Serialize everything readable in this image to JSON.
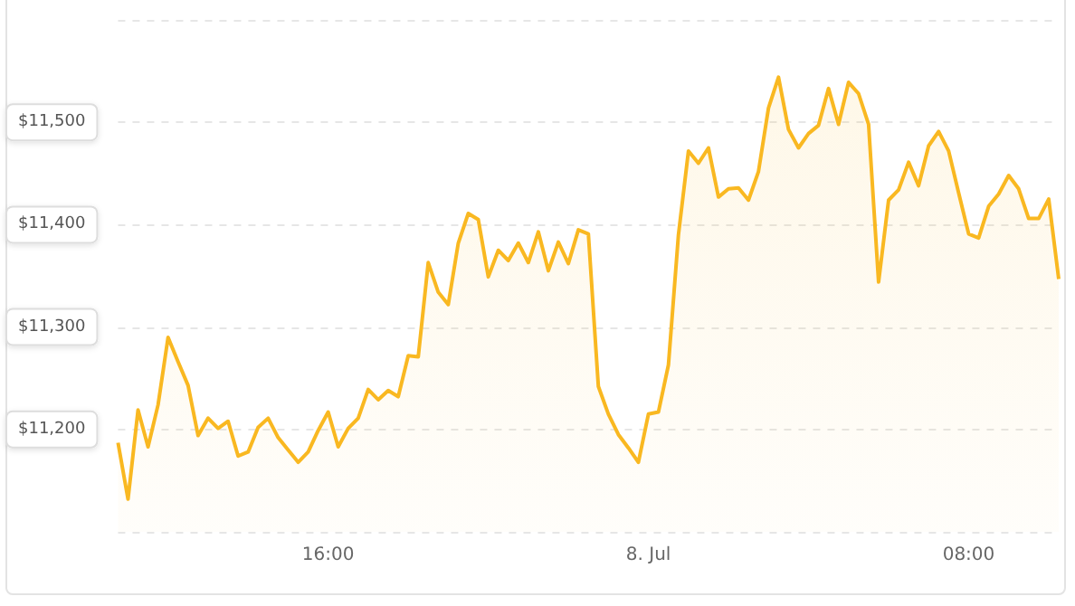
{
  "chart_data": {
    "type": "area",
    "x": [
      "--07-07T10:45",
      "--07-07T11:00",
      "--07-07T11:15",
      "--07-07T11:30",
      "--07-07T11:45",
      "--07-07T12:00",
      "--07-07T12:15",
      "--07-07T12:30",
      "--07-07T12:45",
      "--07-07T13:00",
      "--07-07T13:15",
      "--07-07T13:30",
      "--07-07T13:45",
      "--07-07T14:00",
      "--07-07T14:15",
      "--07-07T14:30",
      "--07-07T14:45",
      "--07-07T15:00",
      "--07-07T15:15",
      "--07-07T15:30",
      "--07-07T15:45",
      "--07-07T16:00",
      "--07-07T16:15",
      "--07-07T16:30",
      "--07-07T16:45",
      "--07-07T17:00",
      "--07-07T17:15",
      "--07-07T17:30",
      "--07-07T17:45",
      "--07-07T18:00",
      "--07-07T18:15",
      "--07-07T18:30",
      "--07-07T18:45",
      "--07-07T19:00",
      "--07-07T19:15",
      "--07-07T19:30",
      "--07-07T19:45",
      "--07-07T20:00",
      "--07-07T20:15",
      "--07-07T20:30",
      "--07-07T20:45",
      "--07-07T21:00",
      "--07-07T21:15",
      "--07-07T21:30",
      "--07-07T21:45",
      "--07-07T22:00",
      "--07-07T22:15",
      "--07-07T22:30",
      "--07-07T22:45",
      "--07-07T23:00",
      "--07-07T23:15",
      "--07-07T23:30",
      "--07-07T23:45",
      "--07-08T00:00",
      "--07-08T00:15",
      "--07-08T00:30",
      "--07-08T00:45",
      "--07-08T01:00",
      "--07-08T01:15",
      "--07-08T01:30",
      "--07-08T01:45",
      "--07-08T02:00",
      "--07-08T02:15",
      "--07-08T02:30",
      "--07-08T02:45",
      "--07-08T03:00",
      "--07-08T03:15",
      "--07-08T03:30",
      "--07-08T03:45",
      "--07-08T04:00",
      "--07-08T04:15",
      "--07-08T04:30",
      "--07-08T04:45",
      "--07-08T05:00",
      "--07-08T05:15",
      "--07-08T05:30",
      "--07-08T05:45",
      "--07-08T06:00",
      "--07-08T06:15",
      "--07-08T06:30",
      "--07-08T06:45",
      "--07-08T07:00",
      "--07-08T07:15",
      "--07-08T07:30",
      "--07-08T07:45",
      "--07-08T08:00",
      "--07-08T08:15",
      "--07-08T08:30",
      "--07-08T08:45",
      "--07-08T09:00",
      "--07-08T09:15",
      "--07-08T09:30",
      "--07-08T09:45",
      "--07-08T10:00",
      "--07-08T10:15"
    ],
    "series": [
      {
        "color": "#f9b821",
        "values": [
          11187,
          11132,
          11219,
          11183,
          11224,
          11290,
          11266,
          11243,
          11194,
          11211,
          11201,
          11208,
          11174,
          11178,
          11202,
          11211,
          11192,
          11180,
          11168,
          11178,
          11199,
          11217,
          11183,
          11201,
          11211,
          11239,
          11229,
          11238,
          11232,
          11272,
          11271,
          11363,
          11334,
          11322,
          11382,
          11411,
          11405,
          11349,
          11375,
          11365,
          11382,
          11363,
          11393,
          11355,
          11383,
          11362,
          11395,
          11391,
          11242,
          11215,
          11195,
          11182,
          11168,
          11215,
          11217,
          11263,
          11390,
          11472,
          11460,
          11475,
          11427,
          11435,
          11436,
          11424,
          11452,
          11514,
          11544,
          11493,
          11475,
          11489,
          11497,
          11533,
          11498,
          11539,
          11528,
          11498,
          11344,
          11424,
          11434,
          11461,
          11438,
          11477,
          11491,
          11472,
          11431,
          11391,
          11387,
          11418,
          11430,
          11448,
          11435,
          11406,
          11406,
          11425,
          11347
        ]
      }
    ],
    "xlim": [
      "--07-07T10:45",
      "--07-08T10:15"
    ],
    "xticks": [
      {
        "value": "--07-07T16:00",
        "label": "16:00"
      },
      {
        "value": "--07-08T00:00",
        "label": "8. Jul"
      },
      {
        "value": "--07-08T08:00",
        "label": "08:00"
      }
    ],
    "ylim": [
      11100,
      11600
    ],
    "yticks": [
      {
        "value": 11100,
        "label": null
      },
      {
        "value": 11200,
        "label": "$11,200"
      },
      {
        "value": 11300,
        "label": "$11,300"
      },
      {
        "value": 11400,
        "label": "$11,400"
      },
      {
        "value": 11500,
        "label": "$11,500"
      },
      {
        "value": 11600,
        "label": null
      }
    ],
    "grid": "y"
  }
}
